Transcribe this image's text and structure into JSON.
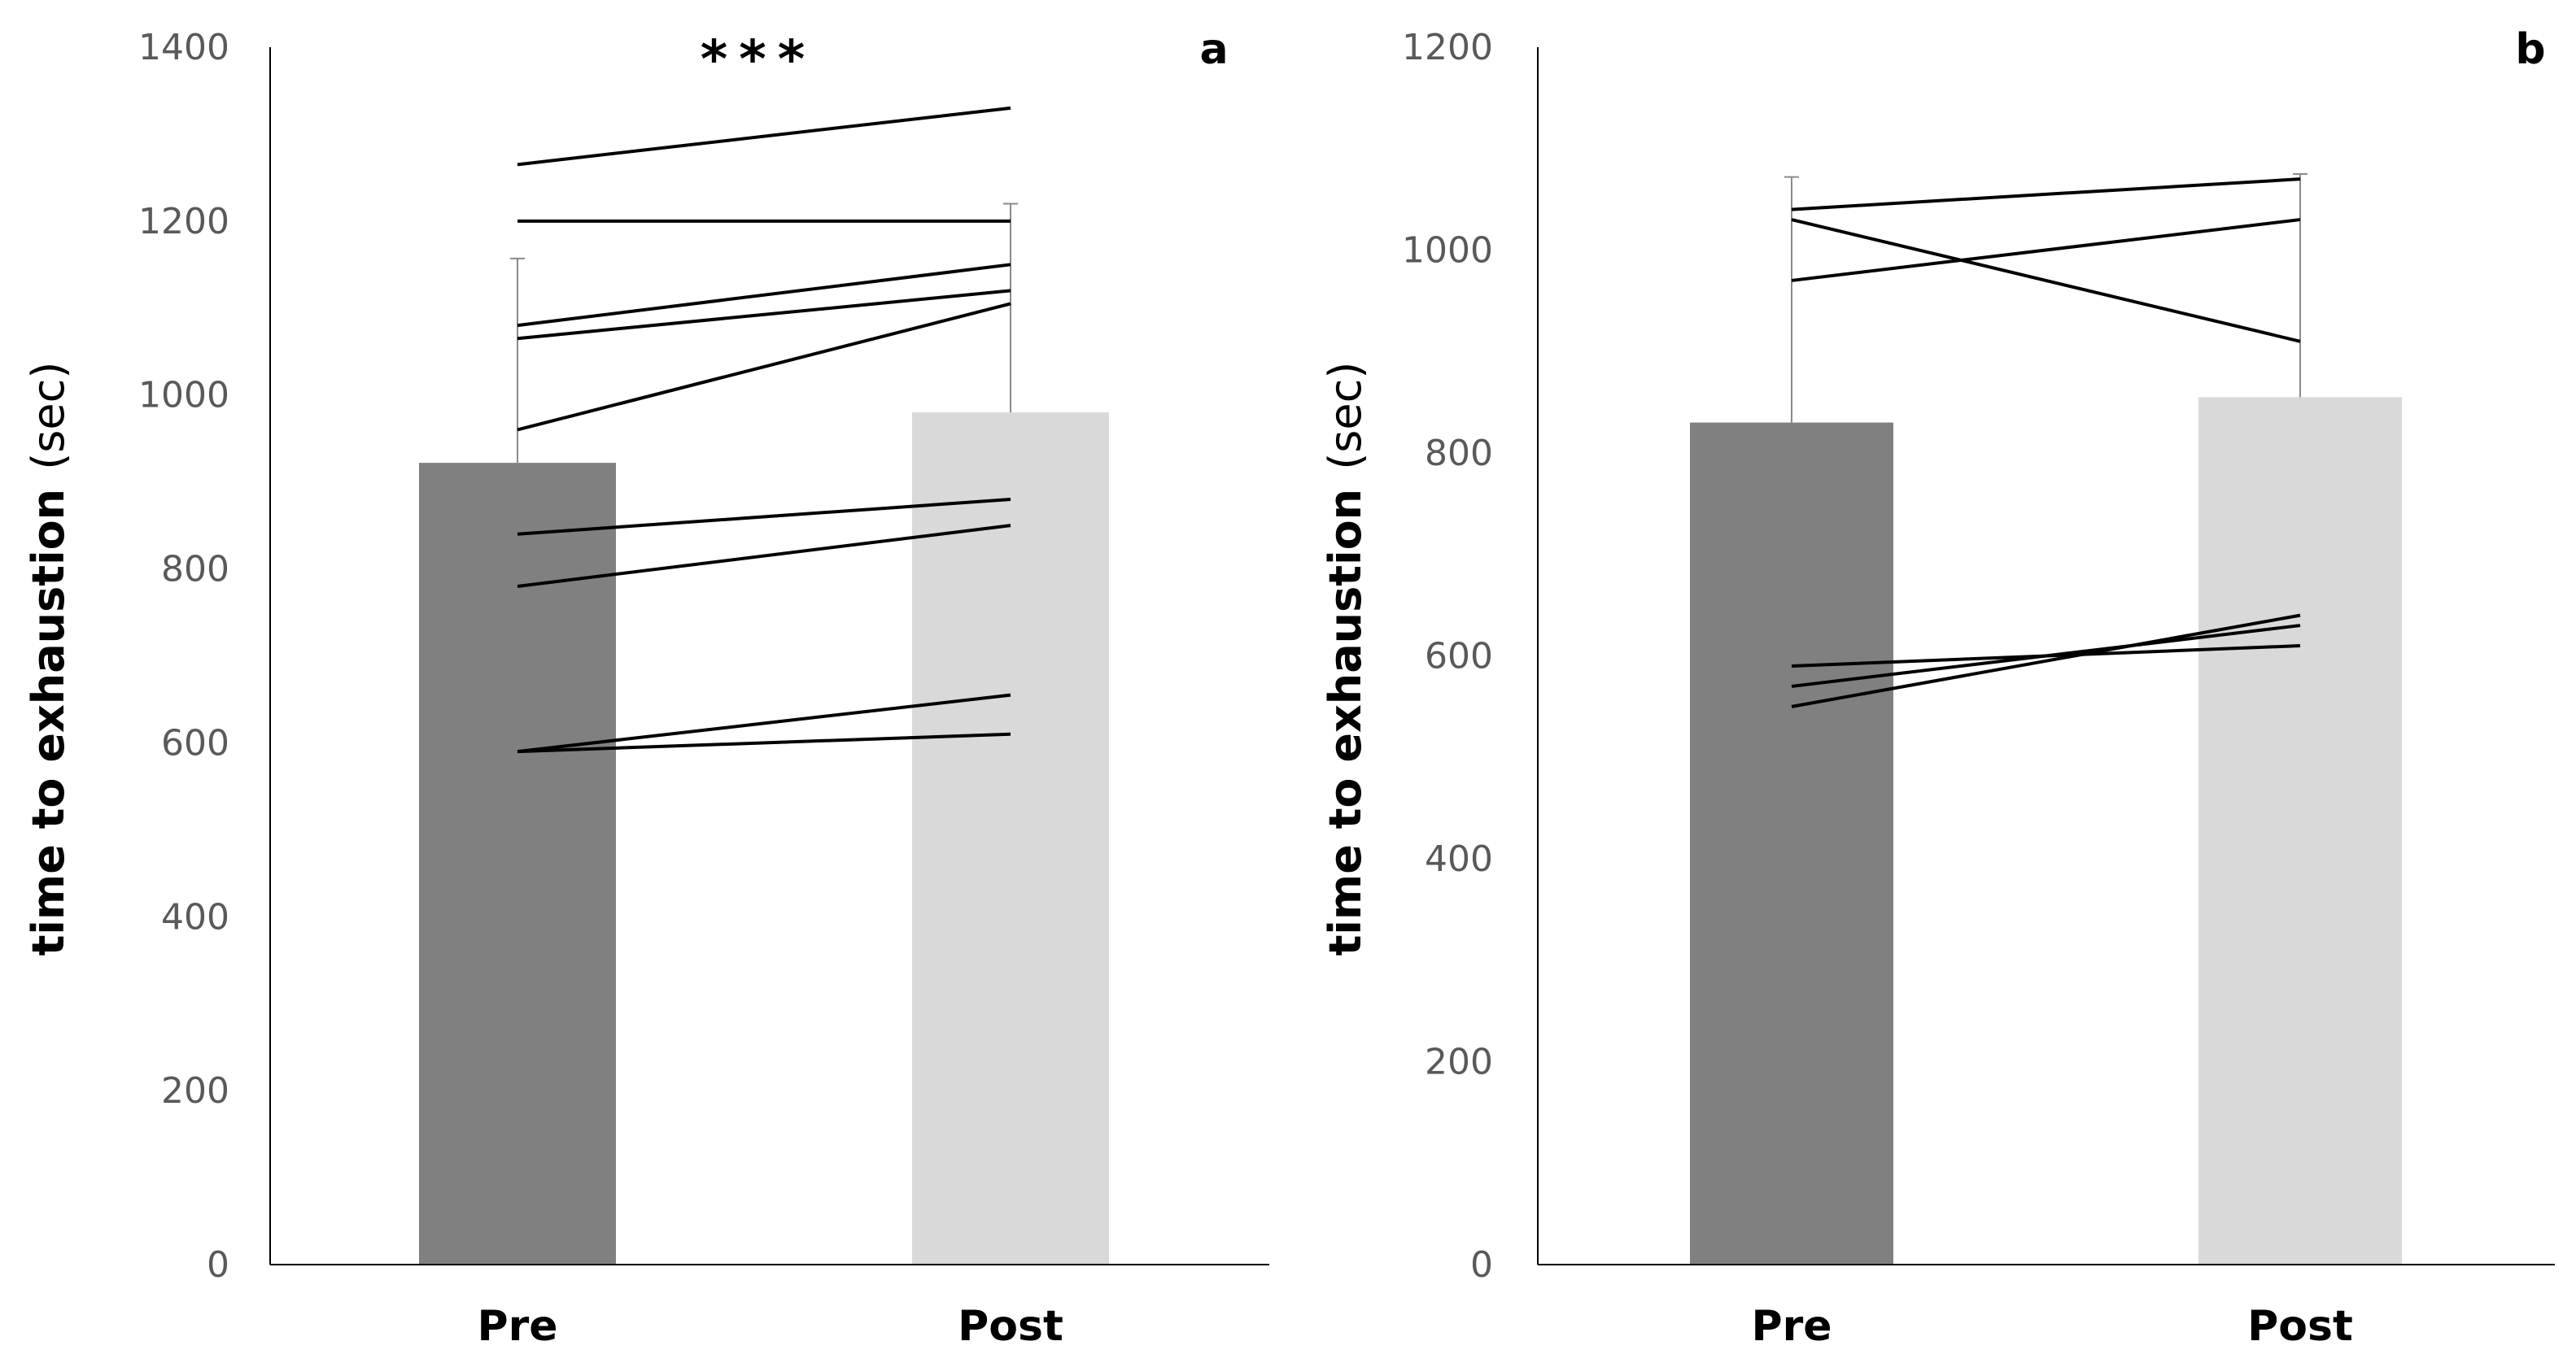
{
  "chart_data": [
    {
      "type": "bar",
      "panel_label": "a",
      "categories": [
        "Pre",
        "Post"
      ],
      "values": [
        922,
        980
      ],
      "error_upper": [
        1157,
        1220
      ],
      "colors": [
        "#808080",
        "#d9d9d9"
      ],
      "ylabel": "time to exhaustion",
      "ylabel_unit": "(sec)",
      "ylim": [
        0,
        1400
      ],
      "yticks": [
        0,
        200,
        400,
        600,
        800,
        1000,
        1200,
        1400
      ],
      "ytick_labels": [
        "0",
        "200",
        "400",
        "600",
        "800",
        "1000",
        "1200",
        "1400"
      ],
      "annotation": "***",
      "individuals": [
        {
          "pre": 1265,
          "post": 1330
        },
        {
          "pre": 1200,
          "post": 1200
        },
        {
          "pre": 1080,
          "post": 1150
        },
        {
          "pre": 1065,
          "post": 1120
        },
        {
          "pre": 960,
          "post": 1105
        },
        {
          "pre": 840,
          "post": 880
        },
        {
          "pre": 780,
          "post": 850
        },
        {
          "pre": 590,
          "post": 655
        },
        {
          "pre": 590,
          "post": 610
        }
      ]
    },
    {
      "type": "bar",
      "panel_label": "b",
      "categories": [
        "Pre",
        "Post"
      ],
      "values": [
        830,
        855
      ],
      "error_upper": [
        1072,
        1075
      ],
      "colors": [
        "#808080",
        "#d9d9d9"
      ],
      "ylabel": "time to exhaustion",
      "ylabel_unit": "(sec)",
      "ylim": [
        0,
        1200
      ],
      "yticks": [
        0,
        200,
        400,
        600,
        800,
        1000,
        1200
      ],
      "ytick_labels": [
        "0",
        "200",
        "400",
        "600",
        "800",
        "1000",
        "1200"
      ],
      "individuals": [
        {
          "pre": 1040,
          "post": 1070
        },
        {
          "pre": 970,
          "post": 1030
        },
        {
          "pre": 1030,
          "post": 910
        },
        {
          "pre": 590,
          "post": 610
        },
        {
          "pre": 570,
          "post": 630
        },
        {
          "pre": 550,
          "post": 640
        }
      ]
    }
  ]
}
